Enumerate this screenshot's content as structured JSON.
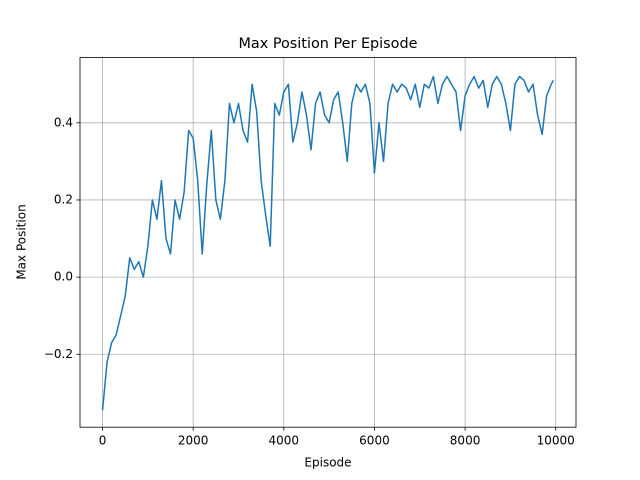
{
  "chart_data": {
    "type": "line",
    "title": "Max Position Per Episode",
    "x_label": "Episode",
    "y_label": "Max Position",
    "x": [
      0,
      100,
      200,
      300,
      400,
      500,
      600,
      700,
      800,
      900,
      1000,
      1100,
      1200,
      1300,
      1400,
      1500,
      1600,
      1700,
      1800,
      1900,
      2000,
      2100,
      2200,
      2300,
      2400,
      2500,
      2600,
      2700,
      2800,
      2900,
      3000,
      3100,
      3200,
      3300,
      3400,
      3500,
      3600,
      3700,
      3800,
      3900,
      4000,
      4100,
      4200,
      4300,
      4400,
      4500,
      4600,
      4700,
      4800,
      4900,
      5000,
      5100,
      5200,
      5300,
      5400,
      5500,
      5600,
      5700,
      5800,
      5900,
      6000,
      6100,
      6200,
      6300,
      6400,
      6500,
      6600,
      6700,
      6800,
      6900,
      7000,
      7100,
      7200,
      7300,
      7400,
      7500,
      7600,
      7700,
      7800,
      7900,
      8000,
      8100,
      8200,
      8300,
      8400,
      8500,
      8600,
      8700,
      8800,
      8900,
      9000,
      9100,
      9200,
      9300,
      9400,
      9500,
      9600,
      9700,
      9800,
      9900,
      9950
    ],
    "series": [
      {
        "name": "Max Position",
        "color": "#1f77b4",
        "values": [
          -0.345,
          -0.22,
          -0.17,
          -0.15,
          -0.1,
          -0.05,
          0.05,
          0.02,
          0.04,
          0.0,
          0.08,
          0.2,
          0.15,
          0.25,
          0.1,
          0.06,
          0.2,
          0.15,
          0.22,
          0.38,
          0.36,
          0.25,
          0.06,
          0.24,
          0.38,
          0.2,
          0.15,
          0.25,
          0.45,
          0.4,
          0.45,
          0.38,
          0.35,
          0.5,
          0.43,
          0.25,
          0.16,
          0.08,
          0.45,
          0.42,
          0.48,
          0.5,
          0.35,
          0.4,
          0.48,
          0.42,
          0.33,
          0.45,
          0.48,
          0.42,
          0.4,
          0.46,
          0.48,
          0.4,
          0.3,
          0.45,
          0.5,
          0.48,
          0.5,
          0.45,
          0.27,
          0.4,
          0.3,
          0.45,
          0.5,
          0.48,
          0.5,
          0.49,
          0.46,
          0.5,
          0.44,
          0.5,
          0.49,
          0.52,
          0.45,
          0.5,
          0.52,
          0.5,
          0.48,
          0.38,
          0.47,
          0.5,
          0.52,
          0.49,
          0.51,
          0.44,
          0.5,
          0.52,
          0.5,
          0.45,
          0.38,
          0.5,
          0.52,
          0.51,
          0.48,
          0.5,
          0.42,
          0.37,
          0.47,
          0.5,
          0.51
        ]
      }
    ],
    "xlim": [
      -497.5,
      10447.5
    ],
    "ylim": [
      -0.389,
      0.569
    ],
    "xticks": [
      0,
      2000,
      4000,
      6000,
      8000,
      10000
    ],
    "yticks": [
      {
        "value": -0.2,
        "label": "−0.2"
      },
      {
        "value": 0,
        "label": "0.0"
      },
      {
        "value": 0.2,
        "label": "0.2"
      },
      {
        "value": 0.4,
        "label": "0.4"
      }
    ],
    "grid": true
  }
}
